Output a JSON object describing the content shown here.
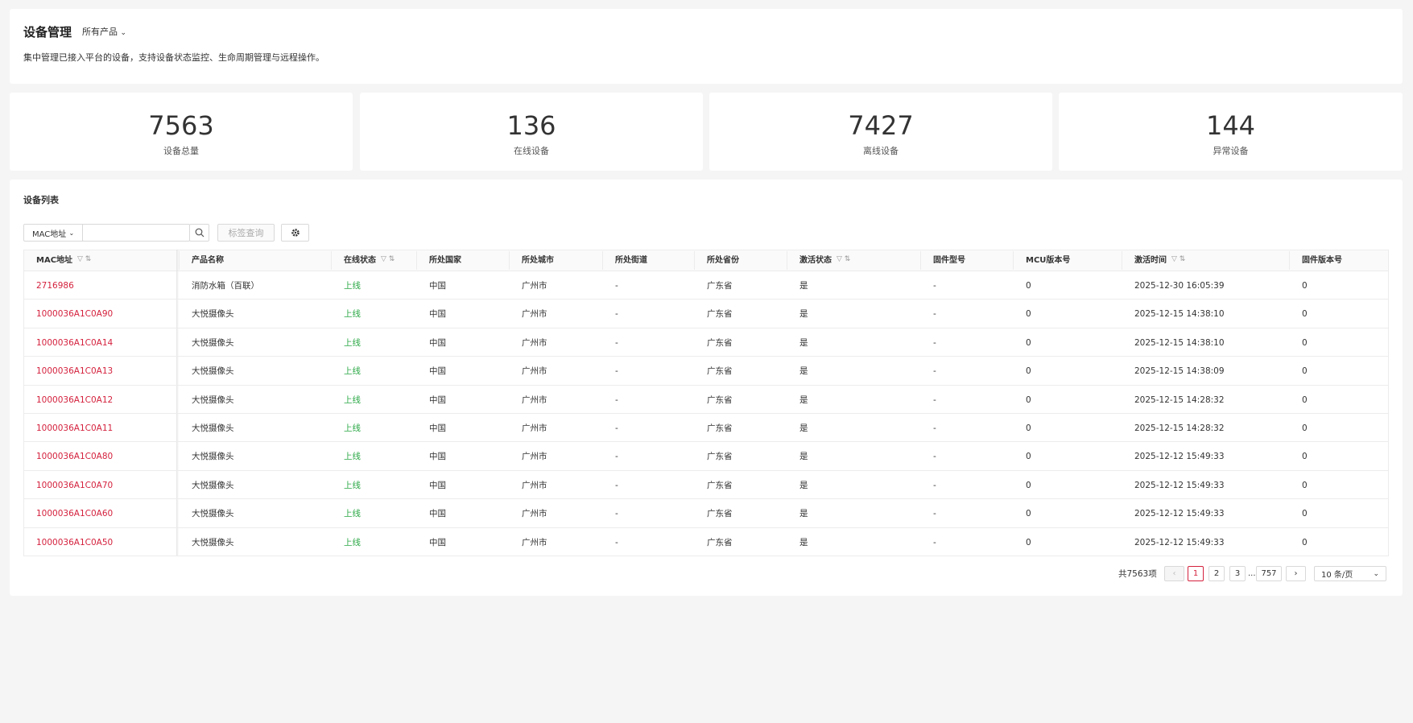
{
  "header": {
    "title": "设备管理",
    "product_selector": "所有产品",
    "description": "集中管理已接入平台的设备，支持设备状态监控、生命周期管理与远程操作。"
  },
  "stats": [
    {
      "value": "7563",
      "label": "设备总量"
    },
    {
      "value": "136",
      "label": "在线设备"
    },
    {
      "value": "7427",
      "label": "离线设备"
    },
    {
      "value": "144",
      "label": "异常设备"
    }
  ],
  "list": {
    "title": "设备列表",
    "search_field": "MAC地址",
    "tag_button": "标签查询"
  },
  "table": {
    "columns": [
      "MAC地址",
      "产品名称",
      "在线状态",
      "所处国家",
      "所处城市",
      "所处街道",
      "所处省份",
      "激活状态",
      "固件型号",
      "MCU版本号",
      "激活时间",
      "固件版本号"
    ],
    "rows": [
      [
        "2716986",
        "消防水箱（百联）",
        "上线",
        "中国",
        "广州市",
        "-",
        "广东省",
        "是",
        "-",
        "0",
        "2025-12-30 16:05:39",
        "0"
      ],
      [
        "1000036A1C0A90",
        "大悦摄像头",
        "上线",
        "中国",
        "广州市",
        "-",
        "广东省",
        "是",
        "-",
        "0",
        "2025-12-15 14:38:10",
        "0"
      ],
      [
        "1000036A1C0A14",
        "大悦摄像头",
        "上线",
        "中国",
        "广州市",
        "-",
        "广东省",
        "是",
        "-",
        "0",
        "2025-12-15 14:38:10",
        "0"
      ],
      [
        "1000036A1C0A13",
        "大悦摄像头",
        "上线",
        "中国",
        "广州市",
        "-",
        "广东省",
        "是",
        "-",
        "0",
        "2025-12-15 14:38:09",
        "0"
      ],
      [
        "1000036A1C0A12",
        "大悦摄像头",
        "上线",
        "中国",
        "广州市",
        "-",
        "广东省",
        "是",
        "-",
        "0",
        "2025-12-15 14:28:32",
        "0"
      ],
      [
        "1000036A1C0A11",
        "大悦摄像头",
        "上线",
        "中国",
        "广州市",
        "-",
        "广东省",
        "是",
        "-",
        "0",
        "2025-12-15 14:28:32",
        "0"
      ],
      [
        "1000036A1C0A80",
        "大悦摄像头",
        "上线",
        "中国",
        "广州市",
        "-",
        "广东省",
        "是",
        "-",
        "0",
        "2025-12-12 15:49:33",
        "0"
      ],
      [
        "1000036A1C0A70",
        "大悦摄像头",
        "上线",
        "中国",
        "广州市",
        "-",
        "广东省",
        "是",
        "-",
        "0",
        "2025-12-12 15:49:33",
        "0"
      ],
      [
        "1000036A1C0A60",
        "大悦摄像头",
        "上线",
        "中国",
        "广州市",
        "-",
        "广东省",
        "是",
        "-",
        "0",
        "2025-12-12 15:49:33",
        "0"
      ],
      [
        "1000036A1C0A50",
        "大悦摄像头",
        "上线",
        "中国",
        "广州市",
        "-",
        "广东省",
        "是",
        "-",
        "0",
        "2025-12-12 15:49:33",
        "0"
      ]
    ]
  },
  "pagination": {
    "total": "共7563项",
    "pages": [
      "1",
      "2",
      "3",
      "757"
    ],
    "ellipsis": "...",
    "page_size": "10 条/页"
  }
}
